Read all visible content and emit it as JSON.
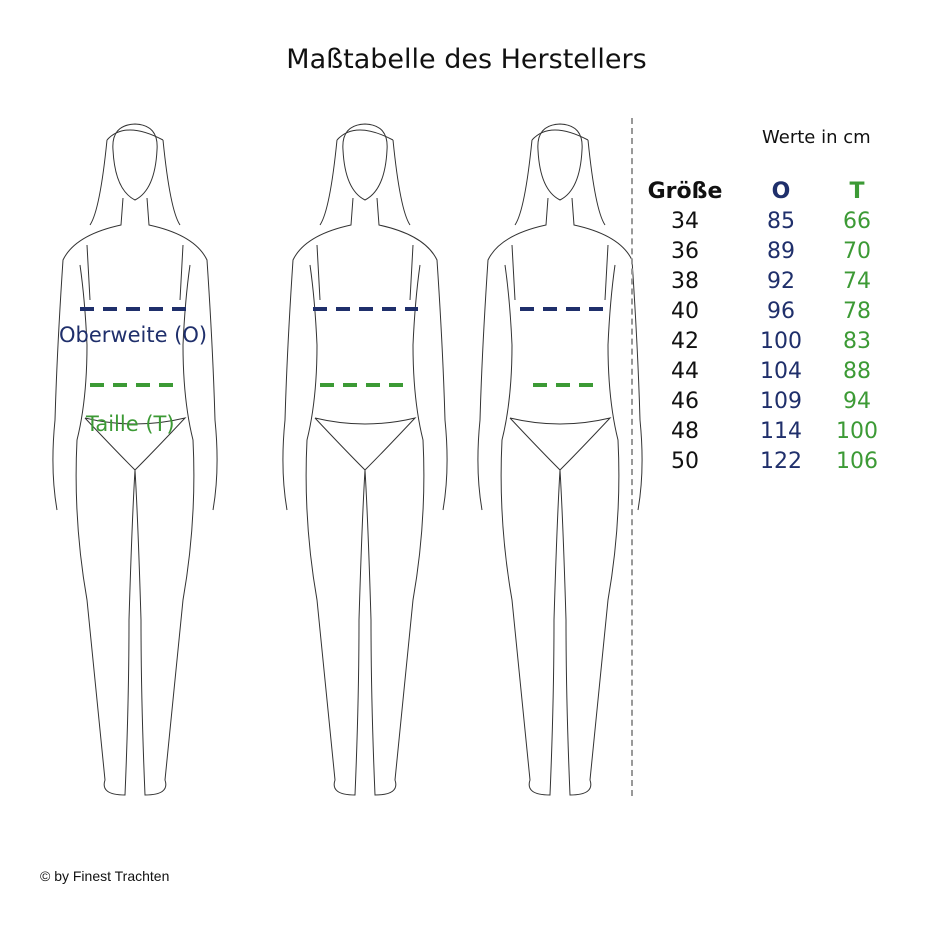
{
  "title": "Maßtabelle des Herstellers",
  "labels": {
    "bust": "Oberweite (O)",
    "waist": "Taille (T)"
  },
  "table": {
    "unit_note": "Werte in cm",
    "headers": [
      "Größe",
      "O",
      "T"
    ],
    "rows": [
      [
        "34",
        "85",
        "66"
      ],
      [
        "36",
        "89",
        "70"
      ],
      [
        "38",
        "92",
        "74"
      ],
      [
        "40",
        "96",
        "78"
      ],
      [
        "42",
        "100",
        "83"
      ],
      [
        "44",
        "104",
        "88"
      ],
      [
        "46",
        "109",
        "94"
      ],
      [
        "48",
        "114",
        "100"
      ],
      [
        "50",
        "122",
        "106"
      ]
    ]
  },
  "colors": {
    "bust": "#1f2f6b",
    "waist": "#3c9a35"
  },
  "copyright": "© by Finest Trachten"
}
